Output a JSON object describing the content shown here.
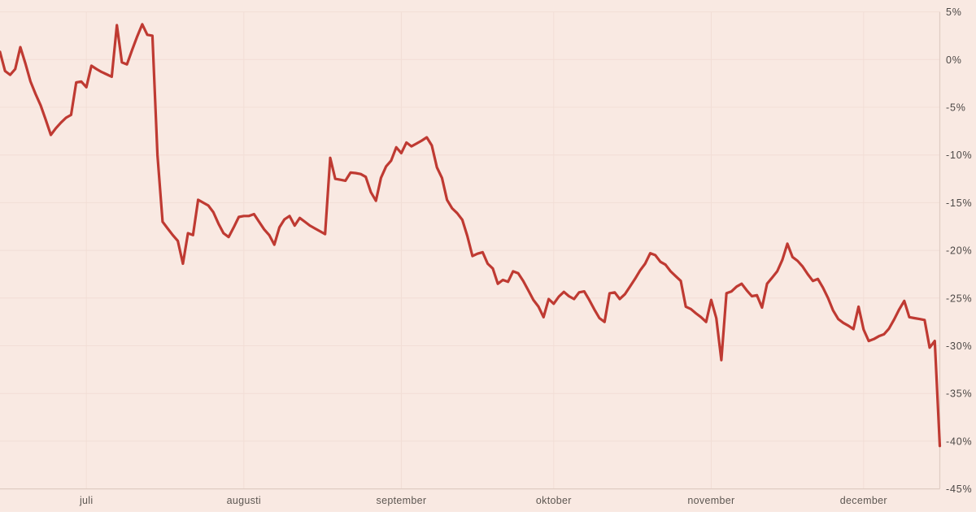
{
  "chart_data": {
    "type": "line",
    "title": "",
    "unit": "%",
    "legend": "none",
    "grid": true,
    "ylim": [
      -45,
      5
    ],
    "y_tick_values": [
      5,
      0,
      -5,
      -10,
      -15,
      -20,
      -25,
      -30,
      -35,
      -40,
      -45
    ],
    "y_tick_labels": [
      "5%",
      "0%",
      "-5%",
      "-10%",
      "-15%",
      "-20%",
      "-25%",
      "-30%",
      "-35%",
      "-40%",
      "-45%"
    ],
    "x_tick_labels": [
      "juli",
      "augusti",
      "september",
      "oktober",
      "november",
      "december"
    ],
    "x_tick_day_index": [
      17,
      48,
      79,
      109,
      140,
      170
    ],
    "x_domain_days": [
      0,
      185
    ],
    "series": [
      {
        "name": "percent-change",
        "color": "#bf3a32",
        "day_index_start": 0,
        "values": [
          0.8,
          -1.2,
          -1.6,
          -1.0,
          1.3,
          -0.4,
          -2.3,
          -3.6,
          -4.8,
          -6.3,
          -7.9,
          -7.2,
          -6.6,
          -6.1,
          -5.8,
          -2.4,
          -2.3,
          -2.9,
          -0.65,
          -1.0,
          -1.3,
          -1.55,
          -1.8,
          3.6,
          -0.3,
          -0.5,
          1.0,
          2.4,
          3.7,
          2.6,
          2.5,
          -10.0,
          -17.0,
          -17.7,
          -18.4,
          -19.0,
          -21.4,
          -18.2,
          -18.4,
          -14.7,
          -15.0,
          -15.3,
          -16.0,
          -17.2,
          -18.2,
          -18.6,
          -17.6,
          -16.5,
          -16.4,
          -16.4,
          -16.2,
          -17.0,
          -17.8,
          -18.4,
          -19.4,
          -17.6,
          -16.75,
          -16.4,
          -17.4,
          -16.6,
          -17.0,
          -17.4,
          -17.7,
          -18.0,
          -18.3,
          -10.3,
          -12.5,
          -12.6,
          -12.7,
          -11.85,
          -11.9,
          -12.0,
          -12.3,
          -13.9,
          -14.8,
          -12.4,
          -11.2,
          -10.6,
          -9.2,
          -9.8,
          -8.7,
          -9.1,
          -8.8,
          -8.5,
          -8.15,
          -9.0,
          -11.3,
          -12.4,
          -14.7,
          -15.6,
          -16.1,
          -16.8,
          -18.5,
          -20.6,
          -20.35,
          -20.2,
          -21.4,
          -21.9,
          -23.5,
          -23.1,
          -23.3,
          -22.2,
          -22.4,
          -23.2,
          -24.2,
          -25.2,
          -25.9,
          -27.0,
          -25.1,
          -25.6,
          -24.85,
          -24.35,
          -24.8,
          -25.1,
          -24.4,
          -24.3,
          -25.2,
          -26.2,
          -27.1,
          -27.5,
          -24.5,
          -24.4,
          -25.1,
          -24.6,
          -23.8,
          -23.0,
          -22.1,
          -21.4,
          -20.3,
          -20.5,
          -21.2,
          -21.5,
          -22.2,
          -22.7,
          -23.2,
          -25.9,
          -26.15,
          -26.6,
          -27.0,
          -27.5,
          -25.2,
          -27.1,
          -31.5,
          -24.5,
          -24.3,
          -23.8,
          -23.5,
          -24.2,
          -24.8,
          -24.7,
          -26.0,
          -23.5,
          -22.85,
          -22.2,
          -21.0,
          -19.3,
          -20.7,
          -21.1,
          -21.7,
          -22.5,
          -23.2,
          -23.0,
          -23.9,
          -25.0,
          -26.3,
          -27.2,
          -27.6,
          -27.9,
          -28.25,
          -25.9,
          -28.3,
          -29.5,
          -29.3,
          -29.0,
          -28.8,
          -28.2,
          -27.25,
          -26.2,
          -25.3,
          -27.0,
          -27.1,
          -27.2,
          -27.3,
          -30.2,
          -29.5,
          -40.5
        ]
      }
    ]
  },
  "colors": {
    "background": "#f9e9e2",
    "gridline": "#f2ded6",
    "axis_line": "#e0ccc3",
    "series_line": "#bf3a32",
    "y_label": "#4c4846",
    "x_label": "#5d5752"
  }
}
